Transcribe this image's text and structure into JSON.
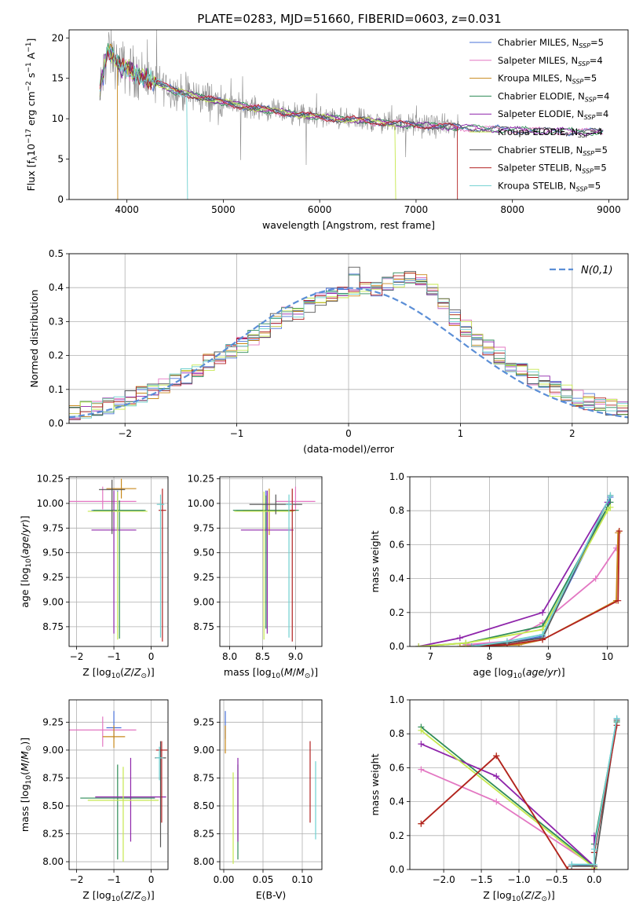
{
  "figure": {
    "title": "PLATE=0283, MJD=51660, FIBERID=0603, z=0.031"
  },
  "palette": {
    "Chabrier MILES": "#4a72d8",
    "Salpeter MILES": "#e377c2",
    "Kroupa MILES": "#c8891c",
    "Chabrier ELODIE": "#2e8b57",
    "Salpeter ELODIE": "#8e24aa",
    "Kroupa ELODIE": "#c6e84e",
    "Chabrier STELIB": "#555555",
    "Salpeter STELIB": "#b22222",
    "Kroupa STELIB": "#6fd0d0",
    "gaussian": "#5b8ed6"
  },
  "chart_data": [
    {
      "id": "spectrum",
      "type": "line",
      "xlabel": "wavelength [Angstrom, rest frame]",
      "ylabel": "Flux [f_λ 10^-17 erg cm^-2 s^-1 A^-1]",
      "xlim": [
        3400,
        9200
      ],
      "ylim": [
        0,
        21
      ],
      "xticks": [
        4000,
        5000,
        6000,
        7000,
        8000,
        9000
      ],
      "yticks": [
        0,
        5,
        10,
        15,
        20
      ],
      "grid": false,
      "legend_position": "top-right",
      "legend": [
        {
          "series": "Chabrier MILES",
          "label": "Chabrier MILES, N",
          "sub": "SSP",
          "tail": "=5"
        },
        {
          "series": "Salpeter MILES",
          "label": "Salpeter MILES, N",
          "sub": "SSP",
          "tail": "=4"
        },
        {
          "series": "Kroupa MILES",
          "label": "Kroupa MILES, N",
          "sub": "SSP",
          "tail": "=5"
        },
        {
          "series": "Chabrier ELODIE",
          "label": "Chabrier ELODIE, N",
          "sub": "SSP",
          "tail": "=4"
        },
        {
          "series": "Salpeter ELODIE",
          "label": "Salpeter ELODIE, N",
          "sub": "SSP",
          "tail": "=4"
        },
        {
          "series": "Kroupa ELODIE",
          "label": "Kroupa ELODIE, N",
          "sub": "SSP",
          "tail": "=4"
        },
        {
          "series": "Chabrier STELIB",
          "label": "Chabrier STELIB, N",
          "sub": "SSP",
          "tail": "=5"
        },
        {
          "series": "Salpeter STELIB",
          "label": "Salpeter STELIB, N",
          "sub": "SSP",
          "tail": "=5"
        },
        {
          "series": "Kroupa STELIB",
          "label": "Kroupa STELIB, N",
          "sub": "SSP",
          "tail": "=5"
        }
      ],
      "model_curve": {
        "x": [
          3700,
          3800,
          3900,
          4000,
          4100,
          4300,
          4500,
          4800,
          5000,
          5200,
          5500,
          5800,
          6000,
          6300,
          6600,
          6900,
          7200,
          7500,
          7800,
          8000,
          8300,
          8600,
          8900
        ],
        "y": [
          12.2,
          18.5,
          16.8,
          16.2,
          15.6,
          14.6,
          13.4,
          12.6,
          12.0,
          11.6,
          11.0,
          10.5,
          10.2,
          9.9,
          9.6,
          9.3,
          9.1,
          8.9,
          8.7,
          8.6,
          8.5,
          8.4,
          8.4
        ]
      },
      "data_curve_range": [
        3720,
        7440
      ],
      "model_ends": {
        "Kroupa MILES": 3905,
        "Kroupa STELIB": 4630,
        "Kroupa ELODIE": 6790,
        "Salpeter STELIB": 7430
      }
    },
    {
      "id": "residuals",
      "type": "line",
      "xlabel": "(data-model)/error",
      "ylabel": "Normed distribution",
      "xlim": [
        -2.5,
        2.5
      ],
      "ylim": [
        0,
        0.5
      ],
      "xticks": [
        -2,
        -1,
        0,
        1,
        2
      ],
      "yticks": [
        0.0,
        0.1,
        0.2,
        0.3,
        0.4,
        0.5
      ],
      "grid": true,
      "legend_position": "top-right",
      "legend_label": "N(0,1)",
      "bin_width": 0.1,
      "histogram_levels": [
        0.035,
        0.04,
        0.045,
        0.05,
        0.06,
        0.075,
        0.085,
        0.095,
        0.11,
        0.125,
        0.14,
        0.16,
        0.18,
        0.2,
        0.215,
        0.23,
        0.25,
        0.275,
        0.3,
        0.32,
        0.33,
        0.345,
        0.36,
        0.375,
        0.385,
        0.39,
        0.395,
        0.4,
        0.41,
        0.42,
        0.43,
        0.42,
        0.39,
        0.35,
        0.31,
        0.28,
        0.25,
        0.225,
        0.2,
        0.175,
        0.155,
        0.135,
        0.115,
        0.1,
        0.09,
        0.075,
        0.065,
        0.055,
        0.048,
        0.04
      ]
    },
    {
      "id": "age-vs-Z",
      "type": "scatter",
      "xlabel": "Z [log10(Z/Z⊙)]",
      "ylabel": "age [log10(age/yr)]",
      "xlim": [
        -2.2,
        0.45
      ],
      "ylim": [
        8.55,
        10.27
      ],
      "xticks": [
        -2,
        -1,
        0
      ],
      "yticks": [
        8.75,
        9.0,
        9.25,
        9.5,
        9.75,
        10.0,
        10.25
      ],
      "grid": true,
      "points": [
        {
          "series": "Chabrier MILES",
          "x": -0.9,
          "y": 9.93,
          "xerr": 0.7,
          "yerr": [
            0.2,
            0.2
          ]
        },
        {
          "series": "Salpeter MILES",
          "x": -1.3,
          "y": 10.02,
          "xerr": 0.9,
          "yerr": [
            0.08,
            0.15
          ]
        },
        {
          "series": "Kroupa MILES",
          "x": -0.8,
          "y": 10.15,
          "xerr": 0.4,
          "yerr": [
            0.1,
            0.1
          ]
        },
        {
          "series": "Chabrier ELODIE",
          "x": -0.85,
          "y": 9.93,
          "xerr": 0.7,
          "yerr": [
            1.3,
            0.1
          ]
        },
        {
          "series": "Salpeter ELODIE",
          "x": -1.0,
          "y": 9.73,
          "xerr": 0.6,
          "yerr": [
            1.05,
            0.4
          ]
        },
        {
          "series": "Kroupa ELODIE",
          "x": -0.9,
          "y": 9.92,
          "xerr": 0.8,
          "yerr": [
            1.3,
            0.2
          ]
        },
        {
          "series": "Chabrier STELIB",
          "x": -1.05,
          "y": 10.14,
          "xerr": 0.35,
          "yerr": [
            0.45,
            0.1
          ]
        },
        {
          "series": "Salpeter STELIB",
          "x": 0.3,
          "y": 9.93,
          "xerr": 0.1,
          "yerr": [
            1.33,
            0.22
          ]
        },
        {
          "series": "Kroupa STELIB",
          "x": 0.25,
          "y": 9.99,
          "xerr": 0.1,
          "yerr": [
            1.35,
            0.1
          ]
        }
      ]
    },
    {
      "id": "age-vs-mass",
      "type": "scatter",
      "xlabel": "mass [log10(M/M⊙)]",
      "ylabel": "",
      "xlim": [
        7.85,
        9.4
      ],
      "ylim": [
        8.55,
        10.27
      ],
      "xticks": [
        8.0,
        8.5,
        9.0
      ],
      "yticks": [
        8.75,
        9.0,
        9.25,
        9.5,
        9.75,
        10.0,
        10.25
      ],
      "grid": true,
      "points": [
        {
          "series": "Chabrier MILES",
          "x": 8.55,
          "y": 9.93,
          "xerr": 0.45,
          "yerr": [
            0.2,
            0.2
          ]
        },
        {
          "series": "Salpeter MILES",
          "x": 9.0,
          "y": 10.02,
          "xerr": 0.3,
          "yerr": [
            0.08,
            0.15
          ]
        },
        {
          "series": "Kroupa MILES",
          "x": 8.6,
          "y": 9.93,
          "xerr": 0.4,
          "yerr": [
            0.25,
            0.22
          ]
        },
        {
          "series": "Chabrier ELODIE",
          "x": 8.55,
          "y": 9.93,
          "xerr": 0.5,
          "yerr": [
            1.2,
            0.15
          ]
        },
        {
          "series": "Salpeter ELODIE",
          "x": 8.57,
          "y": 9.73,
          "xerr": 0.4,
          "yerr": [
            1.05,
            0.4
          ]
        },
        {
          "series": "Kroupa ELODIE",
          "x": 8.52,
          "y": 9.92,
          "xerr": 0.45,
          "yerr": [
            1.3,
            0.2
          ]
        },
        {
          "series": "Chabrier STELIB",
          "x": 8.7,
          "y": 9.99,
          "xerr": 0.4,
          "yerr": [
            0.1,
            0.1
          ]
        },
        {
          "series": "Salpeter STELIB",
          "x": 8.95,
          "y": 9.93,
          "xerr": 0.05,
          "yerr": [
            1.33,
            0.22
          ]
        },
        {
          "series": "Kroupa STELIB",
          "x": 8.9,
          "y": 9.99,
          "xerr": 0.05,
          "yerr": [
            1.35,
            0.1
          ]
        }
      ]
    },
    {
      "id": "mass-weight-vs-age",
      "type": "line",
      "xlabel": "age [log10(age/yr)]",
      "ylabel": "mass weight",
      "xlim": [
        6.65,
        10.35
      ],
      "ylim": [
        0,
        1
      ],
      "xticks": [
        7,
        8,
        9,
        10
      ],
      "yticks": [
        0.0,
        0.2,
        0.4,
        0.6,
        0.8,
        1.0
      ],
      "grid": true,
      "series": [
        {
          "name": "Chabrier MILES",
          "x": [
            7.6,
            8.3,
            8.9,
            10.0,
            10.05
          ],
          "y": [
            0.01,
            0.02,
            0.06,
            0.82,
            0.88
          ]
        },
        {
          "name": "Salpeter MILES",
          "x": [
            7.6,
            8.3,
            8.9,
            9.8,
            10.15
          ],
          "y": [
            0.01,
            0.03,
            0.14,
            0.4,
            0.58
          ]
        },
        {
          "name": "Kroupa MILES",
          "x": [
            7.5,
            8.5,
            8.9,
            10.15,
            10.18,
            10.2
          ],
          "y": [
            0.0,
            0.01,
            0.04,
            0.27,
            0.67,
            0.68
          ]
        },
        {
          "name": "Chabrier ELODIE",
          "x": [
            6.8,
            7.6,
            8.9,
            10.0,
            10.05
          ],
          "y": [
            0.0,
            0.02,
            0.12,
            0.82,
            0.85
          ]
        },
        {
          "name": "Salpeter ELODIE",
          "x": [
            6.8,
            7.5,
            8.9,
            10.0
          ],
          "y": [
            0.0,
            0.05,
            0.2,
            0.85
          ]
        },
        {
          "name": "Kroupa ELODIE",
          "x": [
            6.8,
            7.6,
            8.9,
            10.0,
            10.05
          ],
          "y": [
            0.0,
            0.02,
            0.1,
            0.8,
            0.82
          ]
        },
        {
          "name": "Chabrier STELIB",
          "x": [
            7.7,
            8.3,
            8.9,
            10.05
          ],
          "y": [
            0.0,
            0.02,
            0.05,
            0.89
          ]
        },
        {
          "name": "Salpeter STELIB",
          "x": [
            7.7,
            8.3,
            8.9,
            10.18,
            10.2
          ],
          "y": [
            0.0,
            0.01,
            0.04,
            0.27,
            0.68
          ]
        },
        {
          "name": "Kroupa STELIB",
          "x": [
            7.7,
            8.3,
            8.9,
            10.05
          ],
          "y": [
            0.0,
            0.03,
            0.07,
            0.89
          ]
        }
      ]
    },
    {
      "id": "mass-vs-Z",
      "type": "scatter",
      "xlabel": "Z [log10(Z/Z⊙)]",
      "ylabel": "mass [log10(M/M⊙)]",
      "xlim": [
        -2.2,
        0.45
      ],
      "ylim": [
        7.93,
        9.45
      ],
      "xticks": [
        -2,
        -1,
        0
      ],
      "yticks": [
        8.0,
        8.25,
        8.5,
        8.75,
        9.0,
        9.25
      ],
      "grid": true,
      "points": [
        {
          "series": "Chabrier MILES",
          "x": -1.0,
          "y": 9.2,
          "xerr": 0.2,
          "yerr": [
            0.1,
            0.15
          ]
        },
        {
          "series": "Salpeter MILES",
          "x": -1.3,
          "y": 9.18,
          "xerr": 0.9,
          "yerr": [
            0.15,
            0.12
          ]
        },
        {
          "series": "Kroupa MILES",
          "x": -1.0,
          "y": 9.12,
          "xerr": 0.3,
          "yerr": [
            0.1,
            0.1
          ]
        },
        {
          "series": "Chabrier ELODIE",
          "x": -0.9,
          "y": 8.57,
          "xerr": 1.0,
          "yerr": [
            0.55,
            0.3
          ]
        },
        {
          "series": "Salpeter ELODIE",
          "x": -0.55,
          "y": 8.58,
          "xerr": 0.95,
          "yerr": [
            0.4,
            0.35
          ]
        },
        {
          "series": "Kroupa ELODIE",
          "x": -0.75,
          "y": 8.55,
          "xerr": 0.95,
          "yerr": [
            0.55,
            0.3
          ]
        },
        {
          "series": "Chabrier STELIB",
          "x": 0.25,
          "y": 8.93,
          "xerr": 0.15,
          "yerr": [
            0.8,
            0.15
          ]
        },
        {
          "series": "Salpeter STELIB",
          "x": 0.28,
          "y": 9.0,
          "xerr": 0.15,
          "yerr": [
            0.65,
            0.08
          ]
        },
        {
          "series": "Kroupa STELIB",
          "x": 0.22,
          "y": 8.93,
          "xerr": 0.1,
          "yerr": [
            0.2,
            0.1
          ]
        }
      ]
    },
    {
      "id": "mass-vs-EBV",
      "type": "scatter",
      "xlabel": "E(B-V)",
      "ylabel": "",
      "xlim": [
        -0.005,
        0.125
      ],
      "ylim": [
        7.93,
        9.45
      ],
      "xticks": [
        0.0,
        0.05,
        0.1
      ],
      "yticks": [
        8.0,
        8.25,
        8.5,
        8.75,
        9.0,
        9.25
      ],
      "grid": true,
      "points": [
        {
          "series": "Chabrier MILES",
          "x": 0.002,
          "y": 9.2,
          "xerr": 0,
          "yerr": [
            0.1,
            0.15
          ]
        },
        {
          "series": "Kroupa MILES",
          "x": 0.002,
          "y": 9.12,
          "xerr": 0,
          "yerr": [
            0.15,
            0.1
          ]
        },
        {
          "series": "Chabrier ELODIE",
          "x": 0.018,
          "y": 8.57,
          "xerr": 0,
          "yerr": [
            0.55,
            0.3
          ]
        },
        {
          "series": "Salpeter ELODIE",
          "x": 0.018,
          "y": 8.58,
          "xerr": 0,
          "yerr": [
            0.4,
            0.35
          ]
        },
        {
          "series": "Kroupa ELODIE",
          "x": 0.012,
          "y": 8.5,
          "xerr": 0,
          "yerr": [
            0.52,
            0.3
          ]
        },
        {
          "series": "Salpeter STELIB",
          "x": 0.11,
          "y": 8.7,
          "xerr": 0,
          "yerr": [
            0.35,
            0.38
          ]
        },
        {
          "series": "Kroupa STELIB",
          "x": 0.117,
          "y": 8.6,
          "xerr": 0,
          "yerr": [
            0.4,
            0.3
          ]
        }
      ]
    },
    {
      "id": "mass-weight-vs-Z",
      "type": "line",
      "xlabel": "Z [log10(Z/Z⊙)]",
      "ylabel": "mass weight",
      "xlim": [
        -2.45,
        0.45
      ],
      "ylim": [
        0,
        1
      ],
      "xticks": [
        -2.0,
        -1.5,
        -1.0,
        -0.5,
        0.0
      ],
      "yticks": [
        0.0,
        0.2,
        0.4,
        0.6,
        0.8,
        1.0
      ],
      "grid": true,
      "series": [
        {
          "name": "Chabrier MILES",
          "x": [
            -0.3,
            0.0,
            0.0,
            0.3
          ],
          "y": [
            0.03,
            0.02,
            0.1,
            0.89
          ]
        },
        {
          "name": "Salpeter MILES",
          "x": [
            -2.3,
            -1.3,
            0.0,
            0.0
          ],
          "y": [
            0.59,
            0.4,
            0.02,
            0.0
          ]
        },
        {
          "name": "Kroupa MILES",
          "x": [
            -2.3,
            -1.3,
            -0.35,
            0.0
          ],
          "y": [
            0.27,
            0.67,
            0.0,
            0.0
          ]
        },
        {
          "name": "Chabrier ELODIE",
          "x": [
            -2.3,
            0.0,
            0.0,
            0.3
          ],
          "y": [
            0.84,
            0.02,
            0.15,
            0.87
          ]
        },
        {
          "name": "Salpeter ELODIE",
          "x": [
            -2.3,
            -1.3,
            0.0,
            0.0
          ],
          "y": [
            0.74,
            0.55,
            0.02,
            0.2
          ]
        },
        {
          "name": "Kroupa ELODIE",
          "x": [
            -2.3,
            0.0,
            0.0
          ],
          "y": [
            0.82,
            0.01,
            0.1
          ]
        },
        {
          "name": "Chabrier STELIB",
          "x": [
            -0.3,
            0.0,
            0.0,
            0.3
          ],
          "y": [
            0.02,
            0.02,
            0.0,
            0.88
          ]
        },
        {
          "name": "Salpeter STELIB",
          "x": [
            -2.3,
            -1.3,
            -0.35,
            0.0,
            0.0,
            0.3
          ],
          "y": [
            0.27,
            0.67,
            0.0,
            0.0,
            0.1,
            0.85
          ]
        },
        {
          "name": "Kroupa STELIB",
          "x": [
            -0.3,
            0.0,
            0.0,
            0.3
          ],
          "y": [
            0.03,
            0.03,
            0.12,
            0.89
          ]
        }
      ]
    }
  ]
}
